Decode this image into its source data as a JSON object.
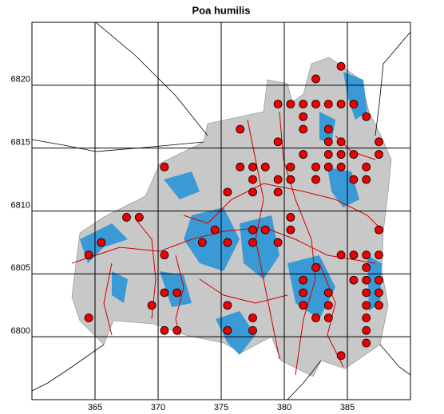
{
  "chart_data": {
    "type": "scatter",
    "title": "Poa humilis",
    "x": [
      384.5,
      382.5,
      379.5,
      380.5,
      381.5,
      382.5,
      383.5,
      384.5,
      385.5,
      381.5,
      386.5,
      376.5,
      381.5,
      383.5,
      379.5,
      383.5,
      384.5,
      387.5,
      381.5,
      383.5,
      384.5,
      385.5,
      387.5,
      370.5,
      376.5,
      377.5,
      378.5,
      380.5,
      382.5,
      383.5,
      384.5,
      386.5,
      377.5,
      379.5,
      380.5,
      382.5,
      385.5,
      386.5,
      375.5,
      377.5,
      379.5,
      367.5,
      368.5,
      380.5,
      374.5,
      377.5,
      378.5,
      380.5,
      387.5,
      365.5,
      373.5,
      375.5,
      377.5,
      379.5,
      364.5,
      370.5,
      384.5,
      385.5,
      386.5,
      387.5,
      382.5,
      386.5,
      381.5,
      385.5,
      386.5,
      387.5,
      370.5,
      371.5,
      381.5,
      383.5,
      386.5,
      387.5,
      369.5,
      375.5,
      381.5,
      383.5,
      386.5,
      387.5,
      364.5,
      377.5,
      382.5,
      383.5,
      386.5,
      370.5,
      371.5,
      375.5,
      377.5,
      386.5,
      386.5,
      384.5
    ],
    "values": [
      6821.5,
      6820.5,
      6818.5,
      6818.5,
      6818.5,
      6818.5,
      6818.5,
      6818.5,
      6818.5,
      6817.5,
      6817.5,
      6816.5,
      6816.5,
      6816.5,
      6815.5,
      6815.5,
      6815.5,
      6815.5,
      6814.5,
      6814.5,
      6814.5,
      6814.5,
      6814.5,
      6813.5,
      6813.5,
      6813.5,
      6813.5,
      6813.5,
      6813.5,
      6813.5,
      6813.5,
      6813.5,
      6812.5,
      6812.5,
      6812.5,
      6812.5,
      6812.5,
      6812.5,
      6811.5,
      6811.5,
      6811.5,
      6809.5,
      6809.5,
      6809.5,
      6808.5,
      6808.5,
      6808.5,
      6808.5,
      6808.5,
      6807.5,
      6807.5,
      6807.5,
      6807.5,
      6807.5,
      6806.5,
      6806.5,
      6806.5,
      6806.5,
      6806.5,
      6806.5,
      6805.5,
      6805.5,
      6804.5,
      6804.5,
      6804.5,
      6804.5,
      6803.5,
      6803.5,
      6803.5,
      6803.5,
      6803.5,
      6803.5,
      6802.5,
      6802.5,
      6802.5,
      6802.5,
      6802.5,
      6802.5,
      6801.5,
      6801.5,
      6801.5,
      6801.5,
      6801.5,
      6800.5,
      6800.5,
      6800.5,
      6800.5,
      6800.5,
      6799.5,
      6798.5
    ],
    "color": "#ee0000",
    "xlim": [
      360,
      390
    ],
    "ylim": [
      6795,
      6825
    ],
    "xticks": [
      365,
      370,
      375,
      380,
      385
    ],
    "yticks": [
      6800,
      6805,
      6810,
      6815,
      6820
    ],
    "grid": true
  }
}
